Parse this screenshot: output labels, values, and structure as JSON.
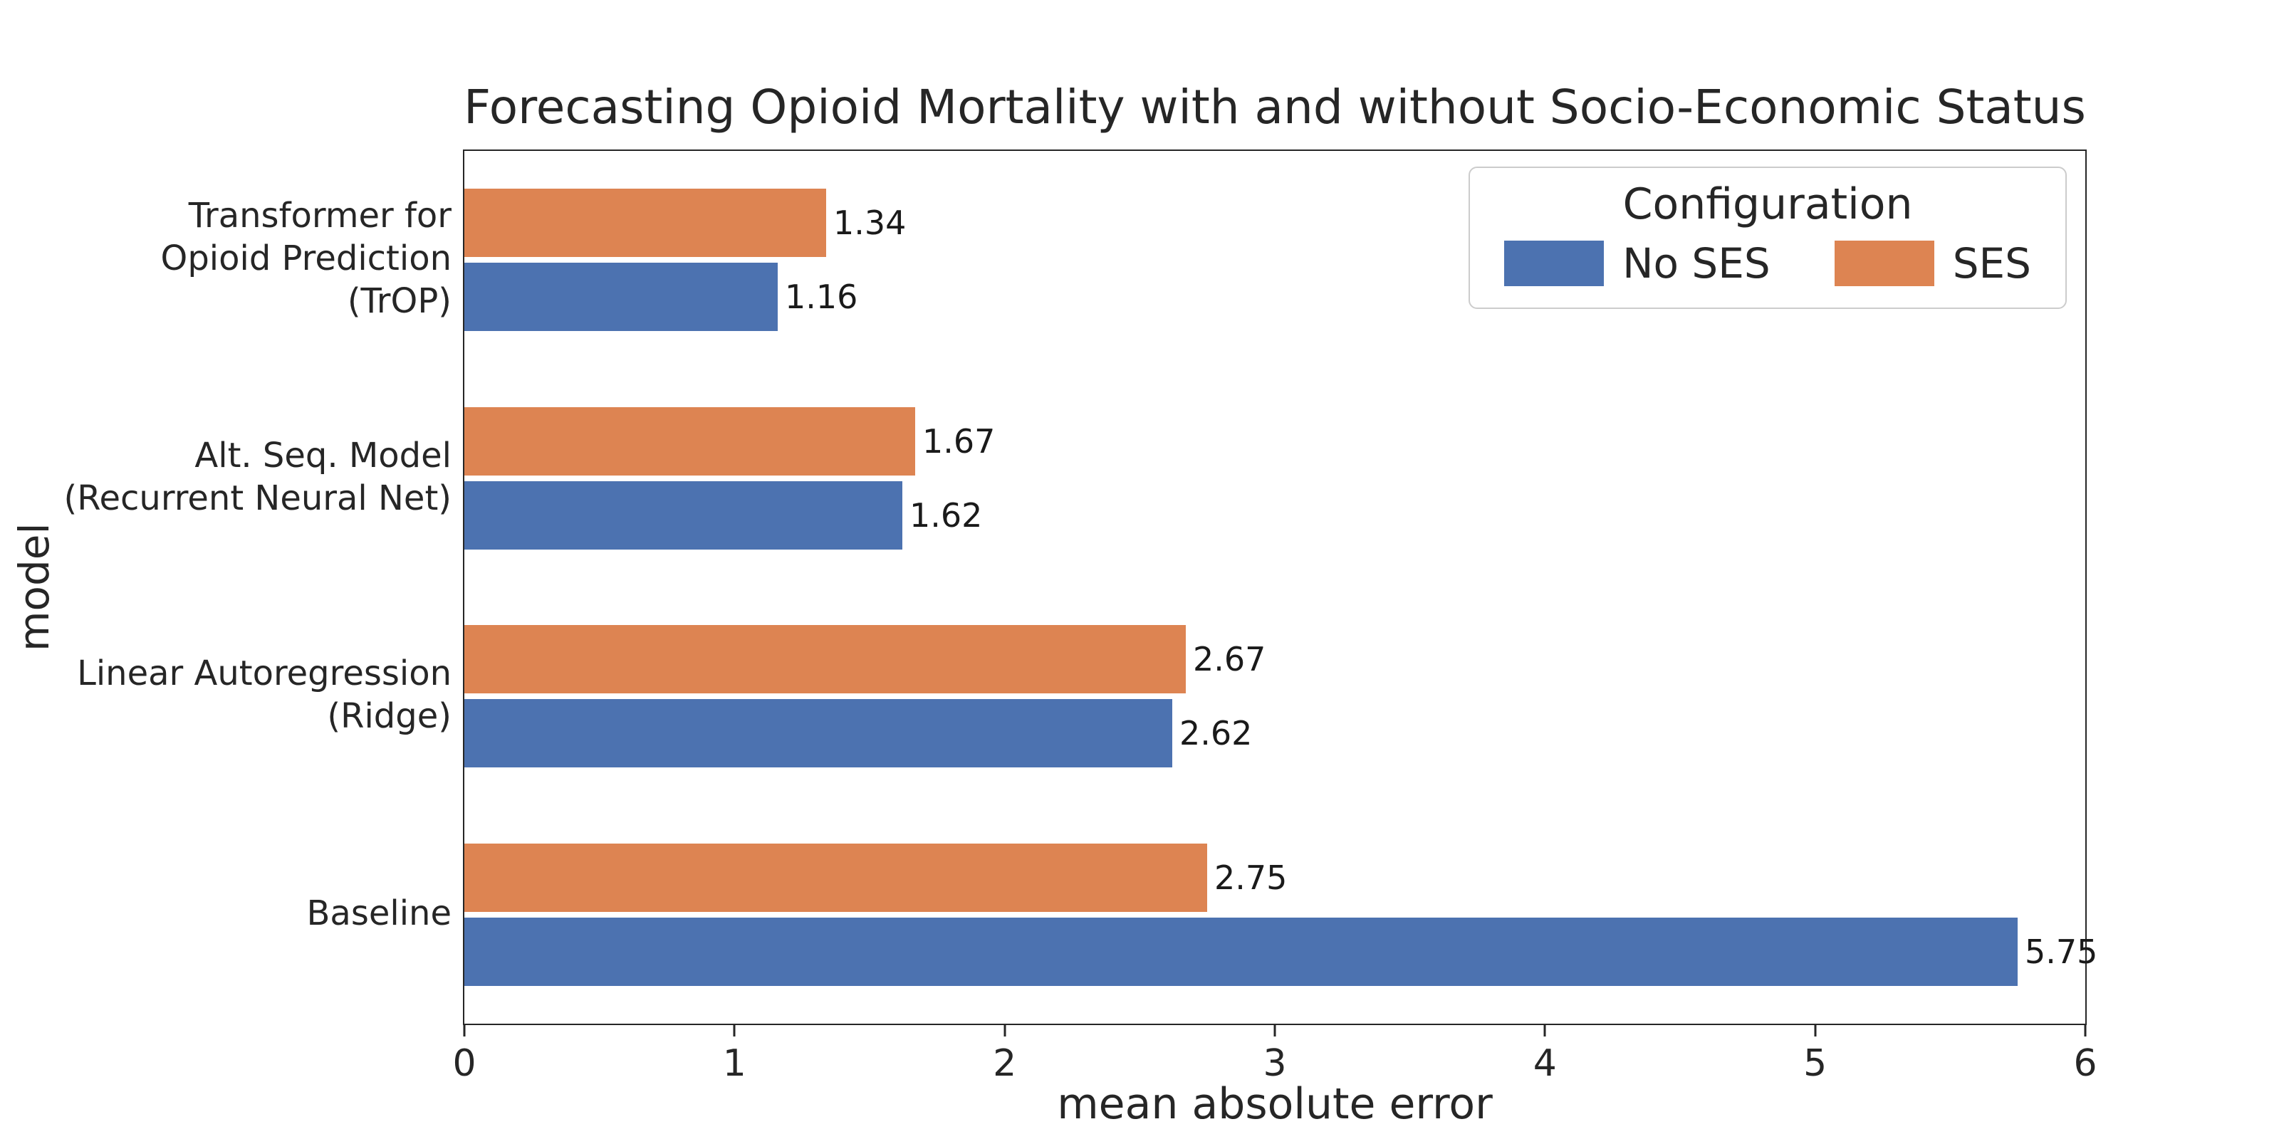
{
  "chart_data": {
    "type": "bar",
    "orientation": "horizontal",
    "title": "Forecasting Opioid Mortality with and without Socio-Economic Status",
    "xlabel": "mean absolute error",
    "ylabel": "model",
    "xlim": [
      0,
      6
    ],
    "xticks": [
      "0",
      "1",
      "2",
      "3",
      "4",
      "5",
      "6"
    ],
    "grid": false,
    "bar_labels": true,
    "legend": {
      "title": "Configuration",
      "position": "upper right",
      "entries": [
        {
          "label": "No SES",
          "color": "#4c72b0"
        },
        {
          "label": "SES",
          "color": "#dd8452"
        }
      ]
    },
    "categories": [
      "Transformer for\nOpioid Prediction\n(TrOP)",
      "Alt. Seq. Model\n(Recurrent Neural Net)",
      "Linear Autoregression\n(Ridge)",
      "Baseline"
    ],
    "series": [
      {
        "name": "No SES",
        "color": "#4c72b0",
        "values": [
          1.16,
          1.62,
          2.62,
          5.75
        ],
        "labels": [
          "1.16",
          "1.62",
          "2.62",
          "5.75"
        ]
      },
      {
        "name": "SES",
        "color": "#dd8452",
        "values": [
          1.34,
          1.67,
          2.67,
          2.75
        ],
        "labels": [
          "1.34",
          "1.67",
          "2.67",
          "2.75"
        ]
      }
    ],
    "row_order_within_group": [
      "SES",
      "No SES"
    ]
  }
}
